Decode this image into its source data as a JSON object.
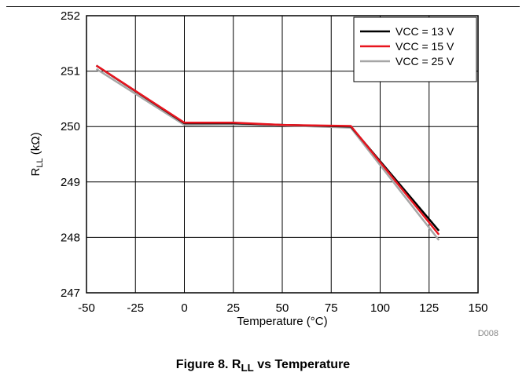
{
  "chart_data": {
    "type": "line",
    "title": "",
    "xlabel": "Temperature (°C)",
    "ylabel_main": "R",
    "ylabel_sub": "LL",
    "ylabel_unit": " (kΩ)",
    "xlim": [
      -50,
      150
    ],
    "ylim": [
      247,
      252
    ],
    "xticks": [
      -50,
      -25,
      0,
      25,
      50,
      75,
      100,
      125,
      150
    ],
    "yticks": [
      247,
      248,
      249,
      250,
      251,
      252
    ],
    "grid": true,
    "legend_position": "top-right",
    "series": [
      {
        "name": "VCC = 13 V",
        "color": "#000000",
        "x": [
          -45,
          0,
          25,
          50,
          85,
          130
        ],
        "y": [
          251.1,
          250.06,
          250.06,
          250.03,
          250.0,
          248.12
        ]
      },
      {
        "name": "VCC = 15 V",
        "color": "#e8141e",
        "x": [
          -45,
          0,
          25,
          50,
          85,
          130
        ],
        "y": [
          251.1,
          250.07,
          250.07,
          250.03,
          250.01,
          248.05
        ]
      },
      {
        "name": "VCC = 25 V",
        "color": "#a6a6a6",
        "x": [
          -45,
          0,
          25,
          50,
          85,
          130
        ],
        "y": [
          251.04,
          250.03,
          250.04,
          250.02,
          249.98,
          247.95
        ]
      }
    ],
    "code": "D008"
  },
  "caption": "Figure 8. R<sub>LL</sub> vs Temperature"
}
